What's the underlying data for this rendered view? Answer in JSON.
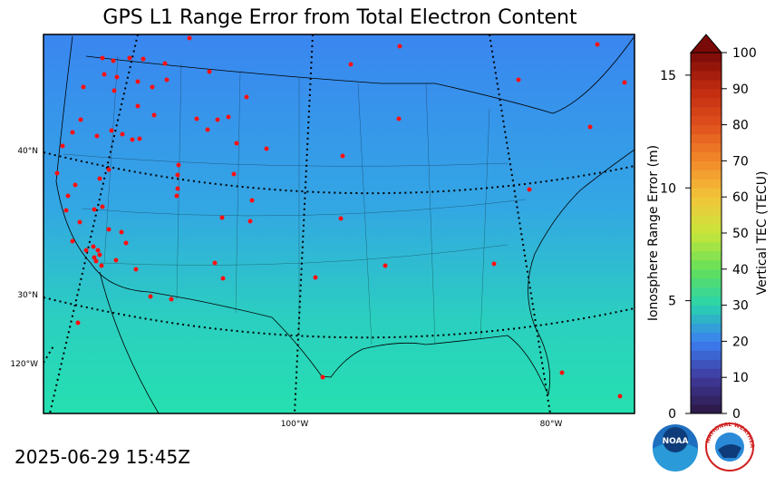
{
  "title": "GPS L1 Range Error from Total Electron Content",
  "timestamp": "2025-06-29 15:45Z",
  "map_labels": {
    "lat": [
      "40°N",
      "30°N"
    ],
    "lon": [
      "120°W",
      "100°W",
      "80°W"
    ]
  },
  "colorbar": {
    "left_label": "Ionosphere Range Error (m)",
    "left_lim": [
      0,
      16
    ],
    "left_ticks": [
      0,
      5,
      10,
      15
    ],
    "right_label": "Vertical TEC (TECU)",
    "right_lim": [
      0,
      100
    ],
    "right_ticks": [
      0,
      10,
      20,
      30,
      40,
      50,
      60,
      70,
      80,
      90,
      100
    ],
    "colors": [
      "#2b1740",
      "#3f3a9c",
      "#3b7ef2",
      "#27d3ad",
      "#63e05a",
      "#c7e63a",
      "#f2c53a",
      "#f28a2a",
      "#e0501c",
      "#c02a10",
      "#7a0a08"
    ]
  },
  "logos": {
    "noaa": "NOAA",
    "nws": "NATIONAL WEATHER SERVICE"
  }
}
